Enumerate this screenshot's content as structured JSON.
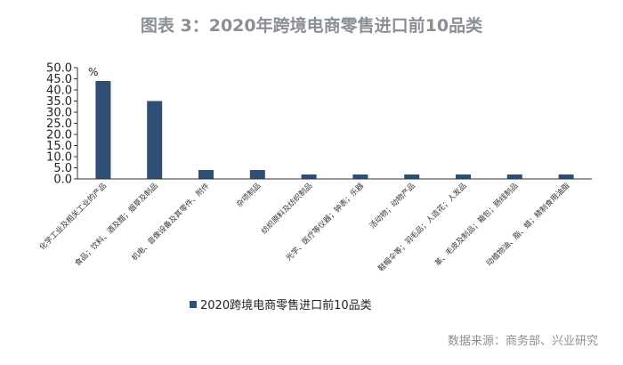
{
  "title": "图表 3：2020年跨境电商零售进口前10品类",
  "source_note": "数据来源：商务部、兴业研究",
  "chart_data": {
    "type": "bar",
    "title": "图表 3：2020年跨境电商零售进口前10品类",
    "unit_label": "%",
    "categories": [
      "化学工业及相关工业的产品",
      "食品；饮料、酒及醋；烟草及制品",
      "机电、音像设备及其零件、附件",
      "杂项制品",
      "纺织原料及纺织制品",
      "光学、医疗等仪器；钟表；乐器",
      "活动物；动物产品",
      "鞋帽伞等；羽毛品；人造花；人发品",
      "革、毛皮及制品；箱包；肠线制品",
      "动植物油、脂、蜡；精制食用油脂"
    ],
    "series": [
      {
        "name": "2020跨境电商零售进口前10品类",
        "color": "#2e4f73",
        "values": [
          44.0,
          35.0,
          4.0,
          4.0,
          2.0,
          2.0,
          2.0,
          2.0,
          2.0,
          2.0
        ]
      }
    ],
    "yticks": [
      "0.0",
      "5.0",
      "10.0",
      "15.0",
      "20.0",
      "25.0",
      "30.0",
      "35.0",
      "40.0",
      "45.0",
      "50.0"
    ],
    "ylim": [
      0,
      50
    ],
    "grid": false,
    "legend_position": "bottom-left"
  }
}
